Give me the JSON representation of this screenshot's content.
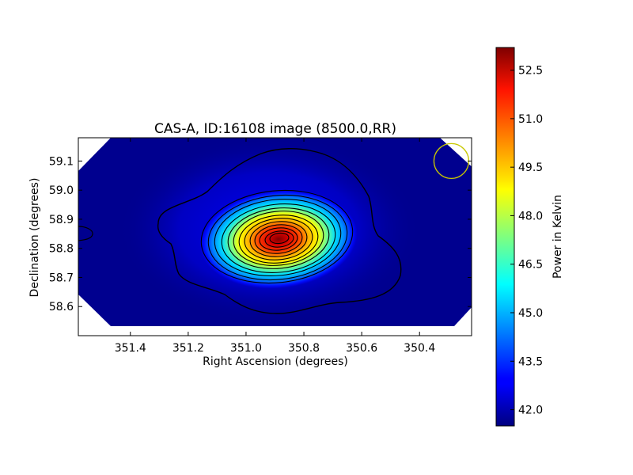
{
  "chart_data": {
    "type": "heatmap",
    "title": "CAS-A, ID:16108 image (8500.0,RR)",
    "xlabel": "Right Ascension (degrees)",
    "ylabel": "Declination (degrees)",
    "xlim": [
      351.58,
      350.22
    ],
    "ylim": [
      58.5,
      59.18
    ],
    "x_axis_reversed": true,
    "xticks": [
      351.4,
      351.2,
      351.0,
      350.8,
      350.6,
      350.4
    ],
    "xtick_labels": [
      "351.4",
      "351.2",
      "351.0",
      "350.8",
      "350.6",
      "350.4"
    ],
    "yticks": [
      58.6,
      58.7,
      58.8,
      58.9,
      59.0,
      59.1
    ],
    "ytick_labels": [
      "58.6",
      "58.7",
      "58.8",
      "58.9",
      "59.0",
      "59.1"
    ],
    "colormap": "jet",
    "source_peak": {
      "ra": 350.88,
      "dec": 58.825,
      "value": 53.0
    },
    "background_value": 41.6,
    "beam_marker": {
      "ra": 350.29,
      "dec": 59.1,
      "color": "#c8c800"
    },
    "colorbar": {
      "label": "Power in Kelvin",
      "min": 41.5,
      "max": 53.2,
      "ticks": [
        42.0,
        43.5,
        45.0,
        46.5,
        48.0,
        49.5,
        51.0,
        52.5
      ],
      "tick_labels": [
        "42.0",
        "43.5",
        "45.0",
        "46.5",
        "48.0",
        "49.5",
        "51.0",
        "52.5"
      ]
    },
    "contour_color": "#000000",
    "grid": false
  }
}
